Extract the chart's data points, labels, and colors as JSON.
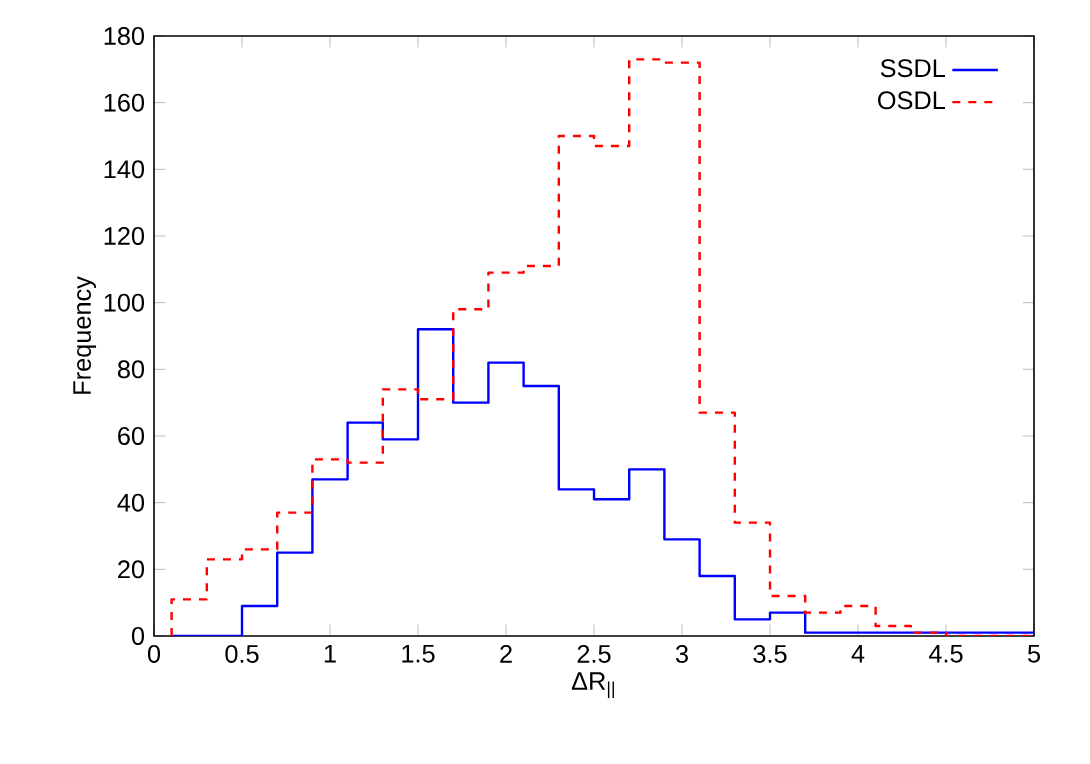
{
  "chart_data": {
    "type": "histogram",
    "xlabel": "ΔR$_{||}$",
    "ylabel": "Frequency",
    "bins": [
      0.1,
      0.3,
      0.5,
      0.7,
      0.9,
      1.1,
      1.3,
      1.5,
      1.7,
      1.9,
      2.1,
      2.3,
      2.5,
      2.7,
      2.9,
      3.1,
      3.3,
      3.5,
      3.7,
      3.9,
      4.1,
      4.3,
      4.5,
      4.7,
      4.9,
      5.0
    ],
    "series": [
      {
        "name": "SSDL",
        "color": "#0000ff",
        "line_style": "solid",
        "values": [
          0,
          0,
          9,
          25,
          47,
          64,
          59,
          92,
          70,
          82,
          75,
          44,
          41,
          50,
          29,
          18,
          5,
          7,
          1,
          1,
          1,
          1,
          1,
          1,
          1
        ]
      },
      {
        "name": "OSDL",
        "color": "#ff0000",
        "line_style": "dashed",
        "values": [
          11,
          23,
          26,
          37,
          53,
          52,
          74,
          71,
          98,
          109,
          111,
          150,
          147,
          173,
          172,
          67,
          34,
          12,
          7,
          9,
          3,
          1,
          0,
          0,
          0
        ]
      }
    ],
    "xlim": [
      0,
      5
    ],
    "ylim": [
      0,
      180
    ],
    "xticks": [
      0,
      0.5,
      1,
      1.5,
      2,
      2.5,
      3,
      3.5,
      4,
      4.5,
      5
    ],
    "yticks": [
      0,
      20,
      40,
      60,
      80,
      100,
      120,
      140,
      160,
      180
    ],
    "grid": false,
    "legend": "top right"
  }
}
